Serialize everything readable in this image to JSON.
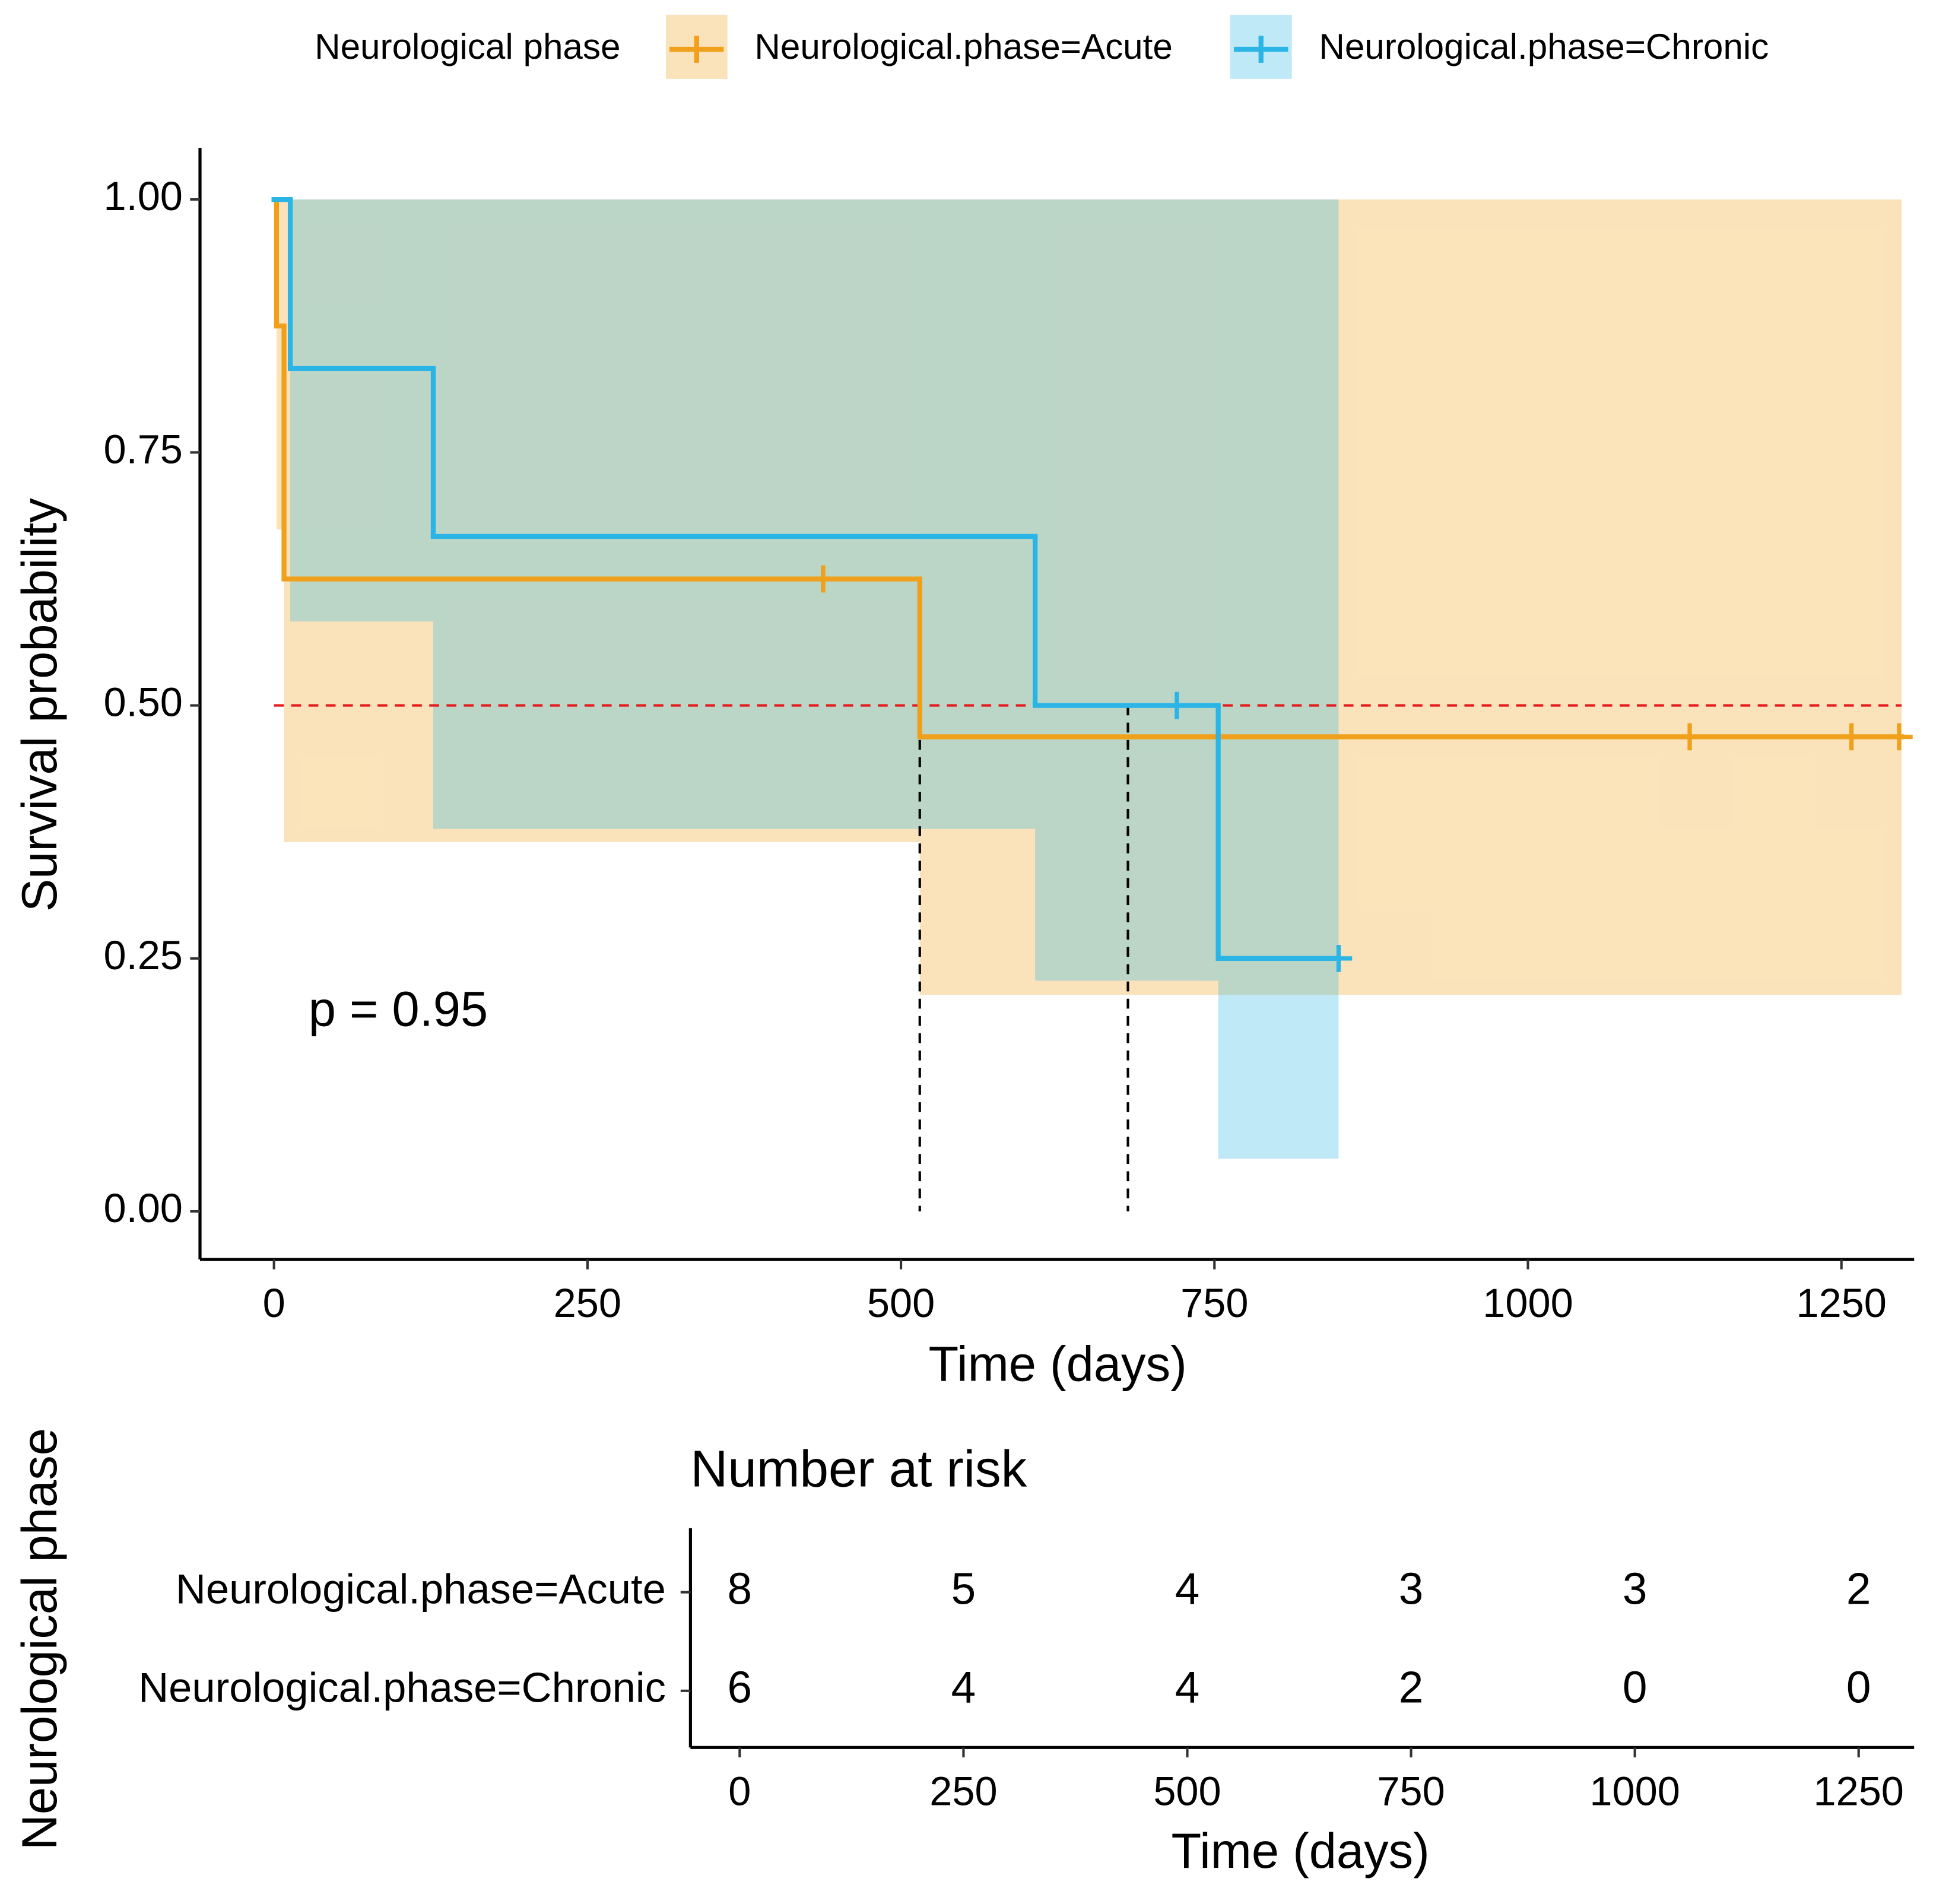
{
  "chart_data": [
    {
      "type": "survival",
      "legend_title": "Neurological phase",
      "xlabel": "Time (days)",
      "ylabel": "Survival probability",
      "annotation": "p = 0.95",
      "xlim": [
        -59,
        1308
      ],
      "ylim": [
        -0.0475,
        1.051
      ],
      "xticks": [
        0,
        250,
        500,
        750,
        1000,
        1250
      ],
      "yticks": [
        {
          "value": 0,
          "label": "0.00"
        },
        {
          "value": 0.25,
          "label": "0.25"
        },
        {
          "value": 0.5,
          "label": "0.50"
        },
        {
          "value": 0.75,
          "label": "0.75"
        },
        {
          "value": 1,
          "label": "1.00"
        }
      ],
      "median_line": 0.5,
      "median_times": [
        515,
        681
      ],
      "series": [
        {
          "name": "Neurological.phase=Acute",
          "color": "#f0a01a",
          "x": [
            0,
            2,
            8,
            515,
            1298
          ],
          "values": [
            1,
            0.875,
            0.625,
            0.469,
            0.469
          ],
          "lower": [
            1,
            0.674,
            0.365,
            0.214,
            0.214
          ],
          "upper": [
            1,
            1,
            1,
            1,
            1
          ],
          "censor_x": [
            438,
            1129,
            1258,
            1296
          ],
          "censor_y": [
            0.625,
            0.469,
            0.469,
            0.469
          ]
        },
        {
          "name": "Neurological.phase=Chronic",
          "color": "#2bb5e6",
          "x": [
            0,
            13,
            127,
            607,
            753,
            849
          ],
          "values": [
            1,
            0.833,
            0.667,
            0.5,
            0.25,
            0.25
          ],
          "lower": [
            1,
            0.583,
            0.378,
            0.228,
            0.052,
            0.052
          ],
          "upper": [
            1,
            1,
            1,
            1,
            1,
            1
          ],
          "censor_x": [
            720,
            849
          ],
          "censor_y": [
            0.5,
            0.25
          ]
        }
      ]
    },
    {
      "type": "risk_table",
      "title": "Number at risk",
      "xlabel": "Time (days)",
      "ylabel": "Neurological phase",
      "xlim": [
        -55,
        1312
      ],
      "xticks": [
        0,
        250,
        500,
        750,
        1000,
        1250
      ],
      "rows": [
        {
          "name": "Neurological.phase=Acute",
          "color": "#f0a01a",
          "values": [
            8,
            5,
            4,
            3,
            3,
            2
          ]
        },
        {
          "name": "Neurological.phase=Chronic",
          "color": "#2bb5e6",
          "values": [
            6,
            4,
            4,
            2,
            0,
            0
          ]
        }
      ]
    }
  ]
}
